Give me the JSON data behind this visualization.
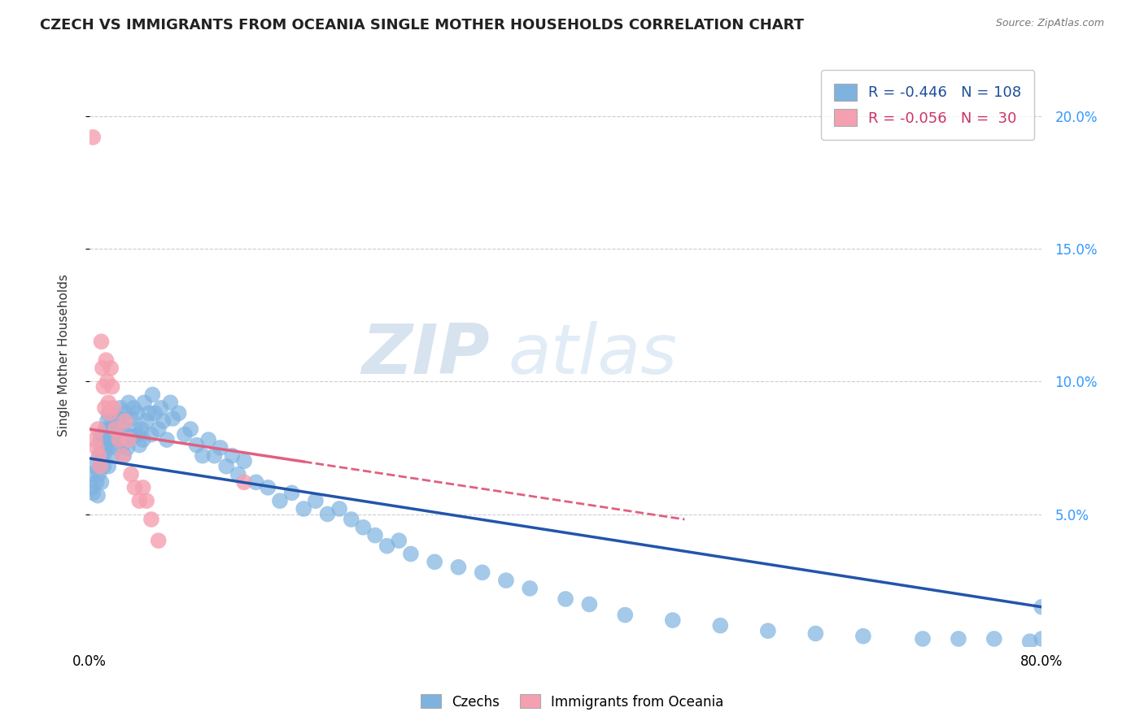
{
  "title": "CZECH VS IMMIGRANTS FROM OCEANIA SINGLE MOTHER HOUSEHOLDS CORRELATION CHART",
  "source": "Source: ZipAtlas.com",
  "ylabel": "Single Mother Households",
  "xlabel": "",
  "watermark_zip": "ZIP",
  "watermark_atlas": "atlas",
  "xlim": [
    0.0,
    0.8
  ],
  "ylim": [
    0.0,
    0.22
  ],
  "legend_blue_R": "-0.446",
  "legend_blue_N": "108",
  "legend_pink_R": "-0.056",
  "legend_pink_N": "30",
  "blue_color": "#7EB3E0",
  "pink_color": "#F4A0B0",
  "blue_line_color": "#2255AA",
  "pink_line_color": "#E06080",
  "blue_scatter_x": [
    0.001,
    0.002,
    0.003,
    0.005,
    0.006,
    0.007,
    0.008,
    0.008,
    0.009,
    0.009,
    0.01,
    0.01,
    0.01,
    0.011,
    0.011,
    0.012,
    0.012,
    0.013,
    0.013,
    0.014,
    0.015,
    0.015,
    0.016,
    0.016,
    0.016,
    0.017,
    0.018,
    0.019,
    0.02,
    0.021,
    0.022,
    0.023,
    0.024,
    0.025,
    0.026,
    0.027,
    0.028,
    0.029,
    0.03,
    0.031,
    0.032,
    0.033,
    0.035,
    0.036,
    0.037,
    0.038,
    0.04,
    0.041,
    0.042,
    0.044,
    0.045,
    0.046,
    0.048,
    0.05,
    0.052,
    0.053,
    0.055,
    0.058,
    0.06,
    0.062,
    0.065,
    0.068,
    0.07,
    0.075,
    0.08,
    0.085,
    0.09,
    0.095,
    0.1,
    0.105,
    0.11,
    0.115,
    0.12,
    0.125,
    0.13,
    0.14,
    0.15,
    0.16,
    0.17,
    0.18,
    0.19,
    0.2,
    0.21,
    0.22,
    0.23,
    0.24,
    0.25,
    0.26,
    0.27,
    0.29,
    0.31,
    0.33,
    0.35,
    0.37,
    0.4,
    0.42,
    0.45,
    0.49,
    0.53,
    0.57,
    0.61,
    0.65,
    0.7,
    0.73,
    0.76,
    0.79,
    0.8,
    0.8
  ],
  "blue_scatter_y": [
    0.065,
    0.06,
    0.058,
    0.068,
    0.062,
    0.057,
    0.072,
    0.065,
    0.078,
    0.068,
    0.075,
    0.07,
    0.062,
    0.08,
    0.073,
    0.078,
    0.068,
    0.082,
    0.073,
    0.076,
    0.085,
    0.075,
    0.088,
    0.079,
    0.068,
    0.082,
    0.078,
    0.072,
    0.085,
    0.079,
    0.082,
    0.075,
    0.086,
    0.078,
    0.09,
    0.083,
    0.076,
    0.072,
    0.088,
    0.08,
    0.075,
    0.092,
    0.086,
    0.079,
    0.09,
    0.082,
    0.088,
    0.08,
    0.076,
    0.082,
    0.078,
    0.092,
    0.085,
    0.088,
    0.08,
    0.095,
    0.088,
    0.082,
    0.09,
    0.085,
    0.078,
    0.092,
    0.086,
    0.088,
    0.08,
    0.082,
    0.076,
    0.072,
    0.078,
    0.072,
    0.075,
    0.068,
    0.072,
    0.065,
    0.07,
    0.062,
    0.06,
    0.055,
    0.058,
    0.052,
    0.055,
    0.05,
    0.052,
    0.048,
    0.045,
    0.042,
    0.038,
    0.04,
    0.035,
    0.032,
    0.03,
    0.028,
    0.025,
    0.022,
    0.018,
    0.016,
    0.012,
    0.01,
    0.008,
    0.006,
    0.005,
    0.004,
    0.003,
    0.003,
    0.003,
    0.002,
    0.015,
    0.003
  ],
  "pink_scatter_x": [
    0.003,
    0.005,
    0.006,
    0.007,
    0.008,
    0.009,
    0.01,
    0.011,
    0.012,
    0.013,
    0.014,
    0.015,
    0.016,
    0.017,
    0.018,
    0.019,
    0.02,
    0.022,
    0.025,
    0.028,
    0.03,
    0.033,
    0.035,
    0.038,
    0.042,
    0.045,
    0.048,
    0.052,
    0.058,
    0.13
  ],
  "pink_scatter_y": [
    0.192,
    0.078,
    0.075,
    0.082,
    0.072,
    0.068,
    0.115,
    0.105,
    0.098,
    0.09,
    0.108,
    0.1,
    0.092,
    0.088,
    0.105,
    0.098,
    0.09,
    0.082,
    0.078,
    0.072,
    0.085,
    0.078,
    0.065,
    0.06,
    0.055,
    0.06,
    0.055,
    0.048,
    0.04,
    0.062
  ],
  "blue_trend_y_start": 0.071,
  "blue_trend_y_end": 0.015,
  "pink_trend_y_start": 0.082,
  "pink_trend_x_end": 0.5,
  "pink_trend_y_end": 0.048,
  "background_color": "#FFFFFF",
  "grid_color": "#CCCCCC"
}
